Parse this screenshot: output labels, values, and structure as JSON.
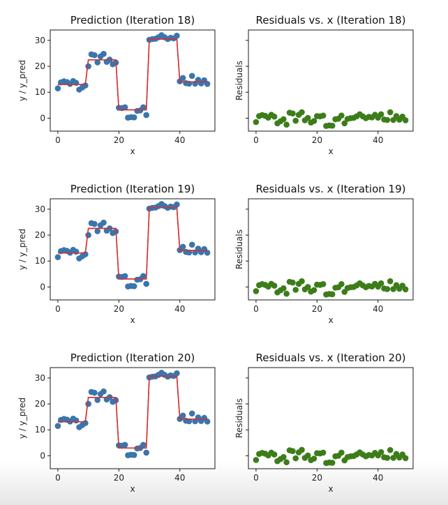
{
  "figure": {
    "rows": 3,
    "cols": 2
  },
  "colors": {
    "scatter_pred": "#3a75ad",
    "line_pred": "#d62f2f",
    "scatter_resid": "#3c7d1a",
    "axes": "#000000"
  },
  "x": [
    0,
    1,
    2,
    3,
    4,
    5,
    6,
    7,
    8,
    9,
    10,
    11,
    12,
    13,
    14,
    15,
    16,
    17,
    18,
    19,
    20,
    21,
    22,
    23,
    24,
    25,
    26,
    27,
    28,
    29,
    30,
    31,
    32,
    33,
    34,
    35,
    36,
    37,
    38,
    39,
    40,
    41,
    42,
    43,
    44,
    45,
    46,
    47,
    48,
    49
  ],
  "chart_data": [
    {
      "type": "scatter+line",
      "title": "Prediction (Iteration 18)",
      "xlabel": "x",
      "ylabel": "y / y_pred",
      "xlim": [
        -2.5,
        51.5
      ],
      "ylim": [
        -5,
        34
      ],
      "xticks": [
        0,
        20,
        40
      ],
      "yticks": [
        0,
        10,
        20,
        30
      ],
      "series": [
        {
          "name": "y",
          "kind": "scatter",
          "values": [
            11.5,
            13.8,
            14.2,
            13.9,
            13.2,
            14.3,
            13.6,
            11,
            11.8,
            12.6,
            20,
            24.6,
            24.3,
            21.5,
            23.8,
            24.8,
            21.7,
            22.6,
            20.8,
            21.4,
            4,
            3.9,
            4.2,
            0.2,
            0.4,
            0.3,
            2.8,
            3,
            4.2,
            1.2,
            30.2,
            30.5,
            30.6,
            31.2,
            32,
            31.2,
            30.5,
            31,
            30.8,
            31.8,
            14.2,
            15.5,
            13.5,
            13.3,
            16.3,
            13.3,
            14.8,
            13.4,
            14.6,
            13.2
          ]
        },
        {
          "name": "y_pred",
          "kind": "step-line",
          "values": [
            13,
            13,
            13,
            13,
            13,
            13,
            13,
            13,
            13,
            13,
            22.5,
            22.5,
            22.5,
            22.5,
            22.5,
            22.5,
            22.5,
            22.5,
            22.5,
            22.5,
            3.2,
            3.2,
            3.2,
            3.2,
            3.2,
            3.2,
            3.2,
            3.2,
            3.2,
            3.2,
            30.5,
            30.5,
            30.5,
            30.5,
            30.5,
            30.5,
            30.5,
            30.5,
            30.5,
            30.5,
            14,
            14,
            14,
            14,
            14,
            14,
            14,
            14,
            14,
            14
          ]
        }
      ]
    },
    {
      "type": "scatter",
      "title": "Residuals vs. x (Iteration 18)",
      "xlabel": "x",
      "ylabel": "Residuals",
      "xlim": [
        -2.5,
        51.5
      ],
      "ylim": [
        -5,
        34
      ],
      "xticks": [
        0,
        20,
        40
      ],
      "yticks": [
        0,
        10,
        20,
        30
      ],
      "ytick_labels_hidden": true,
      "series": [
        {
          "name": "residuals",
          "values": [
            -1.5,
            0.8,
            1.2,
            0.9,
            0.2,
            1.3,
            0.6,
            -2,
            -1.2,
            -0.4,
            -2.5,
            2.1,
            1.8,
            -1,
            1.3,
            2.3,
            -0.8,
            0.1,
            -1.7,
            -1.1,
            0.8,
            0.7,
            1,
            -3,
            -2.8,
            -2.9,
            -0.4,
            -0.2,
            1,
            -2,
            -0.3,
            0,
            0.1,
            0.7,
            1.5,
            0.7,
            0,
            0.5,
            0.3,
            1.3,
            0.2,
            1.5,
            -0.5,
            -0.7,
            2.3,
            -0.7,
            0.8,
            -0.6,
            0.6,
            -0.8
          ]
        }
      ]
    },
    {
      "type": "scatter+line",
      "title": "Prediction (Iteration 19)",
      "xlabel": "x",
      "ylabel": "y / y_pred",
      "xlim": [
        -2.5,
        51.5
      ],
      "ylim": [
        -5,
        34
      ],
      "xticks": [
        0,
        20,
        40
      ],
      "yticks": [
        0,
        10,
        20,
        30
      ],
      "series": [
        {
          "name": "y",
          "kind": "scatter",
          "values": [
            11.5,
            13.8,
            14.2,
            13.9,
            13.2,
            14.3,
            13.6,
            11,
            11.8,
            12.6,
            20,
            24.6,
            24.3,
            21.5,
            23.8,
            24.8,
            21.7,
            22.6,
            20.8,
            21.4,
            4,
            3.9,
            4.2,
            0.2,
            0.4,
            0.3,
            2.8,
            3,
            4.2,
            1.2,
            30.2,
            30.5,
            30.6,
            31.2,
            32,
            31.2,
            30.5,
            31,
            30.8,
            31.8,
            14.2,
            15.5,
            13.5,
            13.3,
            16.3,
            13.3,
            14.8,
            13.4,
            14.6,
            13.2
          ]
        },
        {
          "name": "y_pred",
          "kind": "step-line",
          "values": [
            13.1,
            13.1,
            13.1,
            13.1,
            13.1,
            13.1,
            13.1,
            13.1,
            13.1,
            13.1,
            22.6,
            22.6,
            22.6,
            22.6,
            22.6,
            22.6,
            22.6,
            22.6,
            22.6,
            22.6,
            3.1,
            3.1,
            3.1,
            3.1,
            3.1,
            3.1,
            3.1,
            3.1,
            3.1,
            3.1,
            30.6,
            30.6,
            30.6,
            30.6,
            30.6,
            30.6,
            30.6,
            30.6,
            30.6,
            30.6,
            14.1,
            14.1,
            14.1,
            14.1,
            14.1,
            14.1,
            14.1,
            14.1,
            14.1,
            14.1
          ]
        }
      ]
    },
    {
      "type": "scatter",
      "title": "Residuals vs. x (Iteration 19)",
      "xlabel": "x",
      "ylabel": "Residuals",
      "xlim": [
        -2.5,
        51.5
      ],
      "ylim": [
        -5,
        34
      ],
      "xticks": [
        0,
        20,
        40
      ],
      "yticks": [
        0,
        10,
        20,
        30
      ],
      "ytick_labels_hidden": true,
      "series": [
        {
          "name": "residuals",
          "values": [
            -1.6,
            0.7,
            1.1,
            0.8,
            0.1,
            1.2,
            0.5,
            -2.1,
            -1.3,
            -0.5,
            -2.6,
            2,
            1.7,
            -1.1,
            1.2,
            2.2,
            -0.9,
            0,
            -1.8,
            -1.2,
            0.9,
            0.8,
            1.1,
            -2.9,
            -2.7,
            -2.8,
            -0.3,
            -0.1,
            1.1,
            -1.9,
            -0.4,
            -0.1,
            0,
            0.6,
            1.4,
            0.6,
            -0.1,
            0.4,
            0.2,
            1.2,
            0.1,
            1.4,
            -0.6,
            -0.8,
            2.2,
            -0.8,
            0.7,
            -0.7,
            0.5,
            -0.9
          ]
        }
      ]
    },
    {
      "type": "scatter+line",
      "title": "Prediction (Iteration 20)",
      "xlabel": "x",
      "ylabel": "y / y_pred",
      "xlim": [
        -2.5,
        51.5
      ],
      "ylim": [
        -5,
        34
      ],
      "xticks": [
        0,
        20,
        40
      ],
      "yticks": [
        0,
        10,
        20,
        30
      ],
      "series": [
        {
          "name": "y",
          "kind": "scatter",
          "values": [
            11.5,
            13.8,
            14.2,
            13.9,
            13.2,
            14.3,
            13.6,
            11,
            11.8,
            12.6,
            20,
            24.6,
            24.3,
            21.5,
            23.8,
            24.8,
            21.7,
            22.6,
            20.8,
            21.4,
            4,
            3.9,
            4.2,
            0.2,
            0.4,
            0.3,
            2.8,
            3,
            4.2,
            1.2,
            30.2,
            30.5,
            30.6,
            31.2,
            32,
            31.2,
            30.5,
            31,
            30.8,
            31.8,
            14.2,
            15.5,
            13.5,
            13.3,
            16.3,
            13.3,
            14.8,
            13.4,
            14.6,
            13.2
          ]
        },
        {
          "name": "y_pred",
          "kind": "step-line",
          "values": [
            13.1,
            13.1,
            13.1,
            13.1,
            13.1,
            13.1,
            13.1,
            13.1,
            13.1,
            13.1,
            22.5,
            22.5,
            22.5,
            22.5,
            22.5,
            22.5,
            22.5,
            22.5,
            22.5,
            22.5,
            3,
            3,
            3,
            3,
            3,
            3,
            3,
            3,
            3,
            3,
            30.7,
            30.7,
            30.7,
            30.7,
            30.7,
            30.7,
            30.7,
            30.7,
            30.7,
            30.7,
            14.1,
            14.1,
            14.1,
            14.1,
            14.1,
            14.1,
            14.1,
            14.1,
            14.1,
            14.1
          ]
        }
      ]
    },
    {
      "type": "scatter",
      "title": "Residuals vs. x (Iteration 20)",
      "xlabel": "x",
      "ylabel": "Residuals",
      "xlim": [
        -2.5,
        51.5
      ],
      "ylim": [
        -5,
        34
      ],
      "xticks": [
        0,
        20,
        40
      ],
      "yticks": [
        0,
        10,
        20,
        30
      ],
      "ytick_labels_hidden": true,
      "series": [
        {
          "name": "residuals",
          "values": [
            -1.6,
            0.7,
            1.1,
            0.8,
            0.1,
            1.2,
            0.5,
            -2.1,
            -1.3,
            -0.5,
            -2.5,
            2.1,
            1.8,
            -1,
            1.3,
            2.3,
            -0.8,
            0.1,
            -1.7,
            -1.1,
            1,
            0.9,
            1.2,
            -2.8,
            -2.6,
            -2.7,
            -0.2,
            0,
            1.2,
            -1.8,
            -0.5,
            -0.2,
            -0.1,
            0.5,
            1.3,
            0.5,
            -0.2,
            0.3,
            0.1,
            1.1,
            0.1,
            1.4,
            -0.6,
            -0.8,
            2.2,
            -0.8,
            0.7,
            -0.7,
            0.5,
            -0.9
          ]
        }
      ]
    }
  ]
}
